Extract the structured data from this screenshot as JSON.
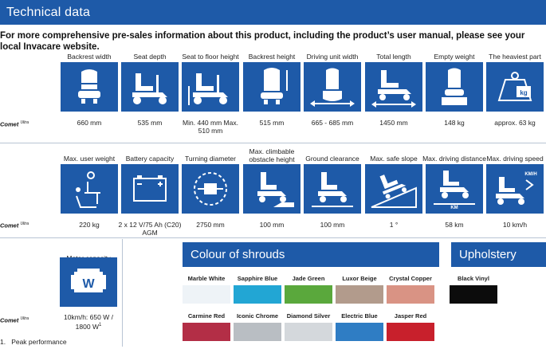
{
  "header": {
    "title": "Technical data"
  },
  "intro": "For more comprehensive pre-sales information about this product, including the product’s user manual, please see your local Invacare website.",
  "model": {
    "name": "Comet",
    "variant": "Ultra"
  },
  "row1": [
    {
      "label": "Backrest width",
      "value": "660 mm",
      "icon": "backrest-width-icon"
    },
    {
      "label": "Seat depth",
      "value": "535 mm",
      "icon": "seat-depth-icon"
    },
    {
      "label": "Seat to floor height",
      "value": "Min. 440 mm Max. 510 mm",
      "icon": "seat-height-icon"
    },
    {
      "label": "Backrest height",
      "value": "515 mm",
      "icon": "backrest-height-icon"
    },
    {
      "label": "Driving unit width",
      "value": "665 - 685 mm",
      "icon": "unit-width-icon"
    },
    {
      "label": "Total length",
      "value": "1450 mm",
      "icon": "total-length-icon"
    },
    {
      "label": "Empty weight",
      "value": "148 kg",
      "icon": "empty-weight-icon"
    },
    {
      "label": "The heaviest part",
      "value": "approx. 63 kg",
      "icon": "heaviest-part-icon",
      "badge": "kg"
    }
  ],
  "row2": [
    {
      "label": "Max. user weight",
      "value": "220 kg",
      "icon": "user-weight-icon"
    },
    {
      "label": "Battery capacity",
      "value": "2 x 12 V/75 Ah (C20) AGM",
      "icon": "battery-icon"
    },
    {
      "label": "Turning diameter",
      "value": "2750 mm",
      "icon": "turning-diameter-icon"
    },
    {
      "label": "Max. climbable obstacle height",
      "value": "100 mm",
      "icon": "obstacle-icon"
    },
    {
      "label": "Ground clearance",
      "value": "100 mm",
      "icon": "ground-clearance-icon"
    },
    {
      "label": "Max. safe slope",
      "value": "1 °",
      "icon": "slope-icon"
    },
    {
      "label": "Max. driving distance",
      "value": "58 km",
      "icon": "distance-icon",
      "badge": "KM"
    },
    {
      "label": "Max. driving speed",
      "value": "10 km/h",
      "icon": "speed-icon",
      "badge": "KM/H"
    }
  ],
  "motor": {
    "label": "Motor capacity",
    "value": "10km/h: 650 W / 1800 W",
    "footref": "1",
    "badge": "W"
  },
  "shrouds": {
    "title": "Colour of shrouds",
    "items": [
      {
        "name": "Marble White",
        "color": "#eef3f7"
      },
      {
        "name": "Sapphire Blue",
        "color": "#22a6d4"
      },
      {
        "name": "Jade Green",
        "color": "#5aa83c"
      },
      {
        "name": "Luxor Beige",
        "color": "#b29b8c"
      },
      {
        "name": "Crystal Copper",
        "color": "#d99384"
      },
      {
        "name": "Carmine Red",
        "color": "#b32e46"
      },
      {
        "name": "Iconic Chrome",
        "color": "#b9bec3"
      },
      {
        "name": "Diamond Silver",
        "color": "#d4d8dc"
      },
      {
        "name": "Electric Blue",
        "color": "#2f7dc4"
      },
      {
        "name": "Jasper Red",
        "color": "#c8202c"
      }
    ]
  },
  "upholstery": {
    "title": "Upholstery",
    "items": [
      {
        "name": "Black Vinyl",
        "color": "#0c0c0c"
      }
    ]
  },
  "footnote": {
    "num": "1.",
    "text": "Peak performance"
  },
  "colors": {
    "brand": "#1e5aa8",
    "rule": "#b8c4d4"
  }
}
